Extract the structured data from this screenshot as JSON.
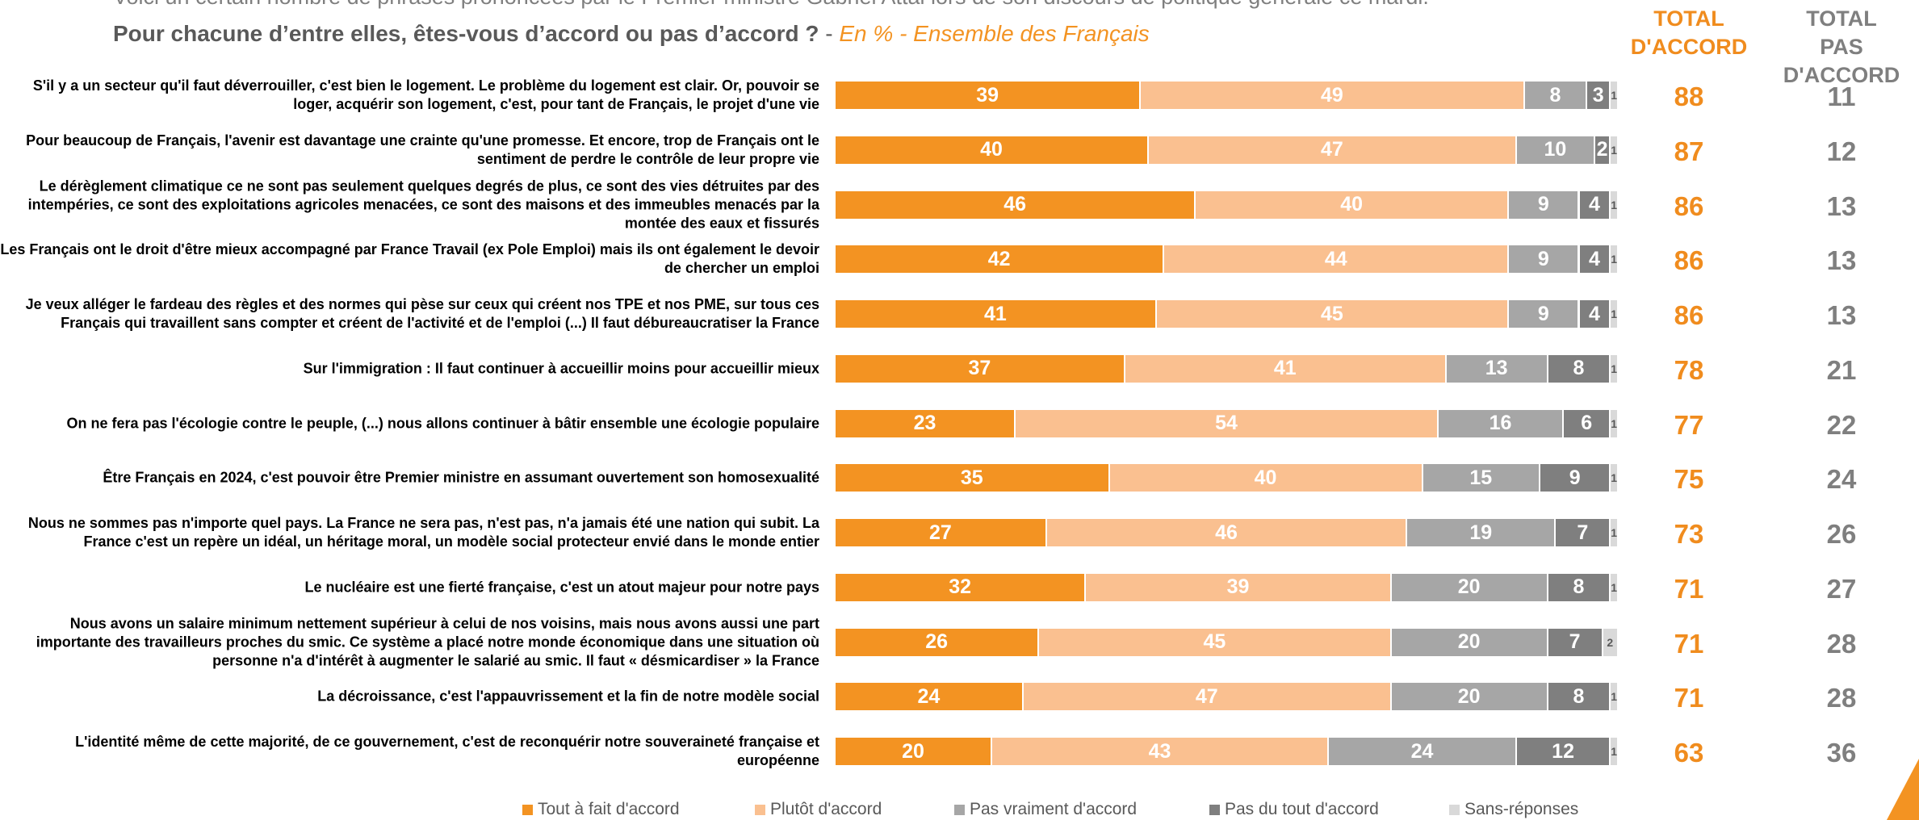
{
  "chart_data": {
    "type": "bar",
    "orientation": "horizontal",
    "stacked": true,
    "intro": "Voici un certain nombre de phrases prononcées par le Premier ministre Gabriel Attal lors de son discours de politique générale ce mardi.",
    "title": "Pour chacune d’entre elles, êtes-vous d’accord ou pas d’accord ?",
    "title_separator": " - ",
    "subtitle": "En % - Ensemble des Français",
    "xlim": [
      0,
      100
    ],
    "categories": [
      "S'il y a un secteur qu'il faut déverrouiller, c'est bien le logement. Le problème du logement est clair. Or, pouvoir se loger, acquérir son logement, c'est, pour tant de Français, le projet d'une vie",
      "Pour beaucoup de Français, l'avenir est davantage une crainte qu'une promesse. Et encore, trop de Français ont le sentiment de perdre le contrôle de leur propre vie",
      "Le dérèglement climatique ce ne sont pas seulement quelques degrés de plus, ce sont des vies détruites par des intempéries, ce sont des exploitations agricoles menacées, ce sont des maisons et des immeubles menacés par la montée des eaux et fissurés",
      "Les Français ont le droit d'être mieux accompagné par France Travail (ex Pole Emploi) mais ils ont également le devoir de chercher un emploi",
      "Je veux alléger le fardeau des règles et des normes qui pèse sur ceux qui créent nos TPE et nos PME, sur tous ces Français qui travaillent sans compter et créent de l'activité et de l'emploi (...) Il faut débureaucratiser la France",
      "Sur l'immigration : Il faut continuer à accueillir moins pour accueillir mieux",
      "On ne fera pas l'écologie contre le peuple, (...) nous allons continuer à bâtir ensemble une écologie populaire",
      "Être Français en 2024, c'est pouvoir être Premier ministre en assumant ouvertement son homosexualité",
      "Nous ne sommes pas n'importe quel pays. La France ne sera pas, n'est pas, n'a jamais été une nation qui subit. La France c'est un repère un idéal, un héritage moral, un modèle social protecteur envié dans le monde entier",
      "Le nucléaire est une fierté française, c'est un atout majeur pour notre pays",
      "Nous avons un salaire minimum nettement supérieur à celui de nos voisins, mais nous avons aussi une part importante des travailleurs proches du smic. Ce système a placé notre monde économique dans une situation où personne n'a d'intérêt à augmenter le salarié au smic. Il faut « désmicardiser » la France",
      "La décroissance, c'est l'appauvrissement et la fin de notre modèle social",
      "L'identité même de cette majorité, de ce gouvernement, c'est de reconquérir notre souveraineté française et européenne"
    ],
    "series": [
      {
        "name": "Tout à fait d'accord",
        "color": "#f39322",
        "values": [
          39,
          40,
          46,
          42,
          41,
          37,
          23,
          35,
          27,
          32,
          26,
          24,
          20
        ]
      },
      {
        "name": "Plutôt d'accord",
        "color": "#fac090",
        "values": [
          49,
          47,
          40,
          44,
          45,
          41,
          54,
          40,
          46,
          39,
          45,
          47,
          43
        ]
      },
      {
        "name": "Pas vraiment d'accord",
        "color": "#a6a6a6",
        "values": [
          8,
          10,
          9,
          9,
          9,
          13,
          16,
          15,
          19,
          20,
          20,
          20,
          24
        ]
      },
      {
        "name": "Pas du tout d'accord",
        "color": "#7f7f7f",
        "values": [
          3,
          2,
          4,
          4,
          4,
          8,
          6,
          9,
          7,
          8,
          7,
          8,
          12
        ]
      },
      {
        "name": "Sans-réponses",
        "color": "#d9d9d9",
        "values": [
          1,
          1,
          1,
          1,
          1,
          1,
          1,
          1,
          1,
          1,
          2,
          1,
          1
        ]
      }
    ],
    "totals": [
      {
        "header": "TOTAL\nD'ACCORD",
        "color": "#f08c1e",
        "values": [
          88,
          87,
          86,
          86,
          86,
          78,
          77,
          75,
          73,
          71,
          71,
          71,
          63
        ]
      },
      {
        "header": "TOTAL\nPAS D'ACCORD",
        "color": "#7f7f7f",
        "values": [
          11,
          12,
          13,
          13,
          13,
          21,
          22,
          24,
          26,
          27,
          28,
          28,
          36
        ]
      }
    ]
  }
}
